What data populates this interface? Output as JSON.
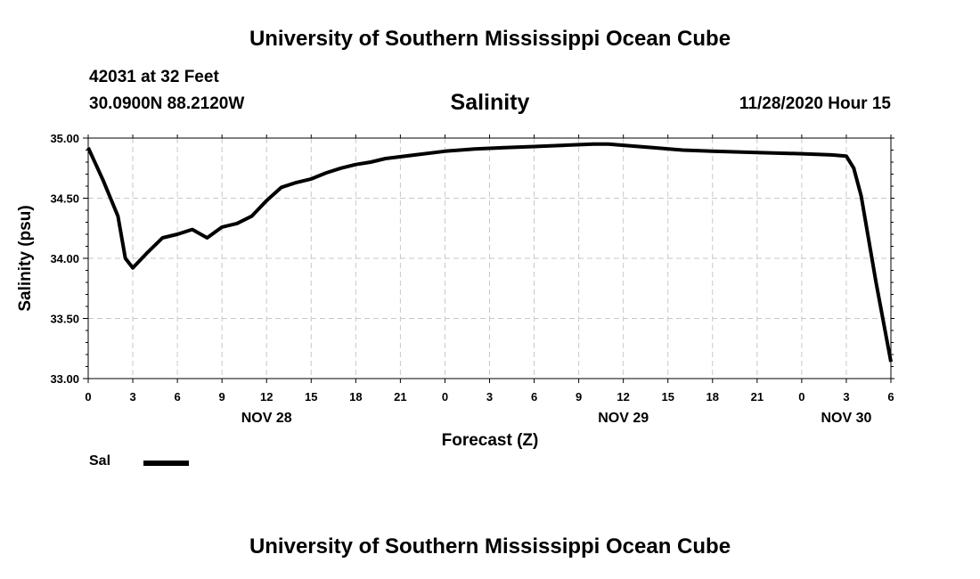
{
  "header": {
    "top_title": "University of Southern Mississippi Ocean Cube",
    "bottom_title": "University of Southern Mississippi Ocean Cube",
    "station": "42031 at 32 Feet",
    "coords": "30.0900N 88.2120W",
    "timestamp": "11/28/2020 Hour 15"
  },
  "chart_data": {
    "type": "line",
    "title": "Salinity",
    "xlabel": "Forecast (Z)",
    "ylabel": "Salinity (psu)",
    "ylim": [
      33.0,
      35.0
    ],
    "xlim": [
      0,
      54
    ],
    "y_ticks": [
      "33.00",
      "33.50",
      "34.00",
      "34.50",
      "35.00"
    ],
    "y_tick_values": [
      33.0,
      33.5,
      34.0,
      34.5,
      35.0
    ],
    "x_ticks": [
      "0",
      "3",
      "6",
      "9",
      "12",
      "15",
      "18",
      "21",
      "0",
      "3",
      "6",
      "9",
      "12",
      "15",
      "18",
      "21",
      "0",
      "3",
      "6"
    ],
    "x_tick_hours": [
      0,
      3,
      6,
      9,
      12,
      15,
      18,
      21,
      24,
      27,
      30,
      33,
      36,
      39,
      42,
      45,
      48,
      51,
      54
    ],
    "date_labels": [
      {
        "label": "NOV 28",
        "hour": 12
      },
      {
        "label": "NOV 29",
        "hour": 36
      },
      {
        "label": "NOV 30",
        "hour": 51
      }
    ],
    "grid": true,
    "legend": {
      "label": "Sal",
      "position": "bottom-left"
    },
    "series": [
      {
        "name": "Sal",
        "x": [
          0,
          1,
          2,
          2.5,
          3,
          4,
          5,
          6,
          7,
          8,
          9,
          10,
          11,
          12,
          13,
          14,
          15,
          16,
          17,
          18,
          19,
          20,
          22,
          24,
          26,
          28,
          30,
          32,
          34,
          35,
          36,
          38,
          40,
          42,
          45,
          48,
          50,
          51,
          51.5,
          52,
          53,
          54
        ],
        "values": [
          34.92,
          34.65,
          34.35,
          34.0,
          33.92,
          34.05,
          34.17,
          34.2,
          34.24,
          34.17,
          34.26,
          34.29,
          34.35,
          34.48,
          34.59,
          34.63,
          34.66,
          34.71,
          34.75,
          34.78,
          34.8,
          34.83,
          34.86,
          34.89,
          34.91,
          34.92,
          34.93,
          34.94,
          34.95,
          34.95,
          34.94,
          34.92,
          34.9,
          34.89,
          34.88,
          34.87,
          34.86,
          34.85,
          34.75,
          34.52,
          33.8,
          33.14
        ]
      }
    ]
  }
}
